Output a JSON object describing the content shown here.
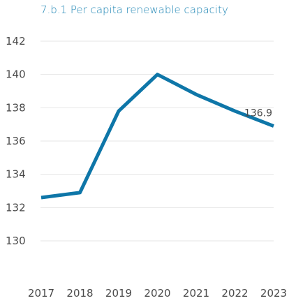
{
  "chart_data": {
    "type": "line",
    "title": "7.b.1 Per capita renewable capacity",
    "xlabel": "",
    "ylabel": "",
    "categories": [
      "2017",
      "2018",
      "2019",
      "2020",
      "2021",
      "2022",
      "2023"
    ],
    "series": [
      {
        "values": [
          132.6,
          132.9,
          137.8,
          140.0,
          138.8,
          137.8,
          136.9
        ],
        "color": "#0e76a8"
      }
    ],
    "y_ticks": [
      130,
      132,
      134,
      136,
      138,
      140,
      142
    ],
    "ylim": [
      128,
      143
    ],
    "grid": true,
    "data_labels": [
      {
        "category": "2023",
        "text": "136.9"
      }
    ]
  }
}
